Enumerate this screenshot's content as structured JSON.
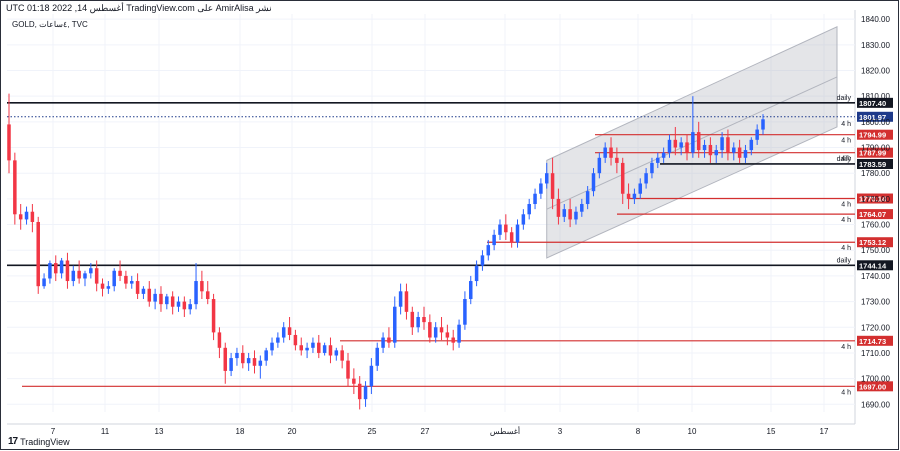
{
  "header": {
    "text": "نشر AmirAlisa على TradingView.com أغسطس 14, 2022 01:18 UTC"
  },
  "symbol": {
    "text": "GOLD, ٤ساعات, TVC"
  },
  "logo": {
    "text": "TradingView"
  },
  "colors": {
    "up": "#2962ff",
    "down": "#f23645",
    "support": "#d32f2f",
    "daily": "#131722",
    "channel": "#b2b5be",
    "price_badge": "#1e3a8a"
  },
  "chart_data": {
    "type": "candlestick",
    "timeframe": "4h",
    "ylim": [
      1687,
      1842
    ],
    "y_ticks": [
      1690,
      1700,
      1710,
      1720,
      1730,
      1740,
      1750,
      1760,
      1770,
      1780,
      1790,
      1800,
      1810,
      1820,
      1830,
      1840
    ],
    "y_tick_labels": [
      "1690.00",
      "1700.00",
      "1710.00",
      "1720.00",
      "1730.00",
      "1740.00",
      "1750.00",
      "1760.00",
      "1770.00",
      "1780.00",
      "1790.00",
      "1800.00",
      "1810.00",
      "1820.00",
      "1830.00",
      "1840.00"
    ],
    "x_labels": [
      "7",
      "11",
      "13",
      "18",
      "20",
      "25",
      "27",
      "أغسطس",
      "3",
      "8",
      "10",
      "15",
      "17"
    ],
    "current_price": 1801.97,
    "levels": [
      {
        "value": 1807.4,
        "label": "1807.40",
        "tag": "daily",
        "style": "black"
      },
      {
        "value": 1794.99,
        "label": "1794.99",
        "tag": "4 h",
        "style": "red"
      },
      {
        "value": 1787.99,
        "label": "1787.99",
        "tag": "4 h",
        "style": "red"
      },
      {
        "value": 1783.59,
        "label": "1783.59",
        "tag": "daily",
        "style": "black"
      },
      {
        "value": 1770.14,
        "label": "1770.14",
        "tag": "4 h",
        "style": "red"
      },
      {
        "value": 1764.07,
        "label": "1764.07",
        "tag": "4 h",
        "style": "red"
      },
      {
        "value": 1753.12,
        "label": "1753.12",
        "tag": "4 h",
        "style": "red"
      },
      {
        "value": 1744.14,
        "label": "1744.14",
        "tag": "daily",
        "style": "black"
      },
      {
        "value": 1714.73,
        "label": "1714.73",
        "tag": "4 h",
        "style": "red"
      },
      {
        "value": 1697.0,
        "label": "1697.00",
        "tag": "4 h",
        "style": "red"
      }
    ],
    "current_price_label": "1801.97",
    "extra_tag": "4 h",
    "candles": [
      {
        "o": 1799,
        "h": 1811,
        "c": 1785,
        "l": 1780
      },
      {
        "o": 1785,
        "h": 1788,
        "c": 1764,
        "l": 1760
      },
      {
        "o": 1764,
        "h": 1768,
        "c": 1762,
        "l": 1758
      },
      {
        "o": 1762,
        "h": 1767,
        "c": 1765,
        "l": 1760
      },
      {
        "o": 1765,
        "h": 1768,
        "c": 1761,
        "l": 1757
      },
      {
        "o": 1761,
        "h": 1763,
        "c": 1736,
        "l": 1733
      },
      {
        "o": 1736,
        "h": 1741,
        "c": 1739,
        "l": 1735
      },
      {
        "o": 1739,
        "h": 1746,
        "c": 1745,
        "l": 1737
      },
      {
        "o": 1745,
        "h": 1748,
        "c": 1741,
        "l": 1738
      },
      {
        "o": 1741,
        "h": 1747,
        "c": 1746,
        "l": 1739
      },
      {
        "o": 1746,
        "h": 1749,
        "c": 1738,
        "l": 1735
      },
      {
        "o": 1738,
        "h": 1744,
        "c": 1742,
        "l": 1736
      },
      {
        "o": 1742,
        "h": 1746,
        "c": 1739,
        "l": 1737
      },
      {
        "o": 1739,
        "h": 1742,
        "c": 1741,
        "l": 1736
      },
      {
        "o": 1741,
        "h": 1745,
        "c": 1743,
        "l": 1739
      },
      {
        "o": 1743,
        "h": 1746,
        "c": 1737,
        "l": 1734
      },
      {
        "o": 1737,
        "h": 1739,
        "c": 1735,
        "l": 1732
      },
      {
        "o": 1735,
        "h": 1738,
        "c": 1736,
        "l": 1733
      },
      {
        "o": 1736,
        "h": 1743,
        "c": 1742,
        "l": 1734
      },
      {
        "o": 1742,
        "h": 1746,
        "c": 1740,
        "l": 1738
      },
      {
        "o": 1740,
        "h": 1742,
        "c": 1737,
        "l": 1735
      },
      {
        "o": 1737,
        "h": 1740,
        "c": 1738,
        "l": 1735
      },
      {
        "o": 1738,
        "h": 1741,
        "c": 1733,
        "l": 1731
      },
      {
        "o": 1733,
        "h": 1736,
        "c": 1735,
        "l": 1731
      },
      {
        "o": 1735,
        "h": 1738,
        "c": 1730,
        "l": 1728
      },
      {
        "o": 1730,
        "h": 1735,
        "c": 1733,
        "l": 1727
      },
      {
        "o": 1733,
        "h": 1736,
        "c": 1729,
        "l": 1726
      },
      {
        "o": 1729,
        "h": 1733,
        "c": 1732,
        "l": 1727
      },
      {
        "o": 1732,
        "h": 1734,
        "c": 1728,
        "l": 1725
      },
      {
        "o": 1728,
        "h": 1732,
        "c": 1730,
        "l": 1726
      },
      {
        "o": 1730,
        "h": 1732,
        "c": 1727,
        "l": 1724
      },
      {
        "o": 1727,
        "h": 1731,
        "c": 1729,
        "l": 1725
      },
      {
        "o": 1729,
        "h": 1745,
        "c": 1738,
        "l": 1727
      },
      {
        "o": 1738,
        "h": 1742,
        "c": 1734,
        "l": 1731
      },
      {
        "o": 1734,
        "h": 1738,
        "c": 1731,
        "l": 1729
      },
      {
        "o": 1731,
        "h": 1733,
        "c": 1718,
        "l": 1715
      },
      {
        "o": 1718,
        "h": 1720,
        "c": 1712,
        "l": 1708
      },
      {
        "o": 1712,
        "h": 1714,
        "c": 1703,
        "l": 1698
      },
      {
        "o": 1703,
        "h": 1710,
        "c": 1708,
        "l": 1701
      },
      {
        "o": 1708,
        "h": 1712,
        "c": 1710,
        "l": 1705
      },
      {
        "o": 1710,
        "h": 1713,
        "c": 1706,
        "l": 1704
      },
      {
        "o": 1706,
        "h": 1710,
        "c": 1708,
        "l": 1703
      },
      {
        "o": 1708,
        "h": 1711,
        "c": 1705,
        "l": 1702
      },
      {
        "o": 1705,
        "h": 1709,
        "c": 1707,
        "l": 1700
      },
      {
        "o": 1707,
        "h": 1712,
        "c": 1711,
        "l": 1705
      },
      {
        "o": 1711,
        "h": 1716,
        "c": 1714,
        "l": 1709
      },
      {
        "o": 1714,
        "h": 1718,
        "c": 1716,
        "l": 1712
      },
      {
        "o": 1716,
        "h": 1722,
        "c": 1720,
        "l": 1714
      },
      {
        "o": 1720,
        "h": 1724,
        "c": 1717,
        "l": 1715
      },
      {
        "o": 1717,
        "h": 1719,
        "c": 1713,
        "l": 1711
      },
      {
        "o": 1713,
        "h": 1716,
        "c": 1711,
        "l": 1709
      },
      {
        "o": 1711,
        "h": 1714,
        "c": 1712,
        "l": 1708
      },
      {
        "o": 1712,
        "h": 1716,
        "c": 1714,
        "l": 1710
      },
      {
        "o": 1714,
        "h": 1717,
        "c": 1710,
        "l": 1708
      },
      {
        "o": 1710,
        "h": 1714,
        "c": 1713,
        "l": 1709
      },
      {
        "o": 1713,
        "h": 1716,
        "c": 1709,
        "l": 1706
      },
      {
        "o": 1709,
        "h": 1712,
        "c": 1711,
        "l": 1707
      },
      {
        "o": 1711,
        "h": 1713,
        "c": 1707,
        "l": 1704
      },
      {
        "o": 1707,
        "h": 1710,
        "c": 1700,
        "l": 1697
      },
      {
        "o": 1700,
        "h": 1704,
        "c": 1698,
        "l": 1694
      },
      {
        "o": 1698,
        "h": 1701,
        "c": 1692,
        "l": 1688
      },
      {
        "o": 1692,
        "h": 1699,
        "c": 1697,
        "l": 1689
      },
      {
        "o": 1697,
        "h": 1708,
        "c": 1705,
        "l": 1694
      },
      {
        "o": 1705,
        "h": 1714,
        "c": 1712,
        "l": 1703
      },
      {
        "o": 1712,
        "h": 1718,
        "c": 1716,
        "l": 1710
      },
      {
        "o": 1716,
        "h": 1720,
        "c": 1714,
        "l": 1712
      },
      {
        "o": 1714,
        "h": 1732,
        "c": 1728,
        "l": 1712
      },
      {
        "o": 1728,
        "h": 1737,
        "c": 1734,
        "l": 1725
      },
      {
        "o": 1734,
        "h": 1737,
        "c": 1726,
        "l": 1723
      },
      {
        "o": 1726,
        "h": 1728,
        "c": 1720,
        "l": 1717
      },
      {
        "o": 1720,
        "h": 1726,
        "c": 1724,
        "l": 1718
      },
      {
        "o": 1724,
        "h": 1728,
        "c": 1722,
        "l": 1719
      },
      {
        "o": 1722,
        "h": 1725,
        "c": 1716,
        "l": 1714
      },
      {
        "o": 1716,
        "h": 1722,
        "c": 1720,
        "l": 1714
      },
      {
        "o": 1720,
        "h": 1724,
        "c": 1718,
        "l": 1715
      },
      {
        "o": 1718,
        "h": 1721,
        "c": 1716,
        "l": 1713
      },
      {
        "o": 1716,
        "h": 1719,
        "c": 1714,
        "l": 1711
      },
      {
        "o": 1714,
        "h": 1723,
        "c": 1721,
        "l": 1712
      },
      {
        "o": 1721,
        "h": 1734,
        "c": 1731,
        "l": 1719
      },
      {
        "o": 1731,
        "h": 1740,
        "c": 1738,
        "l": 1729
      },
      {
        "o": 1738,
        "h": 1746,
        "c": 1744,
        "l": 1736
      },
      {
        "o": 1744,
        "h": 1750,
        "c": 1748,
        "l": 1742
      },
      {
        "o": 1748,
        "h": 1754,
        "c": 1752,
        "l": 1746
      },
      {
        "o": 1752,
        "h": 1758,
        "c": 1756,
        "l": 1750
      },
      {
        "o": 1756,
        "h": 1762,
        "c": 1760,
        "l": 1754
      },
      {
        "o": 1760,
        "h": 1764,
        "c": 1757,
        "l": 1754
      },
      {
        "o": 1757,
        "h": 1759,
        "c": 1753,
        "l": 1751
      },
      {
        "o": 1753,
        "h": 1762,
        "c": 1760,
        "l": 1751
      },
      {
        "o": 1760,
        "h": 1766,
        "c": 1764,
        "l": 1758
      },
      {
        "o": 1764,
        "h": 1770,
        "c": 1768,
        "l": 1762
      },
      {
        "o": 1768,
        "h": 1774,
        "c": 1772,
        "l": 1766
      },
      {
        "o": 1772,
        "h": 1778,
        "c": 1776,
        "l": 1770
      },
      {
        "o": 1776,
        "h": 1784,
        "c": 1780,
        "l": 1774
      },
      {
        "o": 1780,
        "h": 1786,
        "c": 1770,
        "l": 1766
      },
      {
        "o": 1770,
        "h": 1774,
        "c": 1763,
        "l": 1760
      },
      {
        "o": 1763,
        "h": 1768,
        "c": 1766,
        "l": 1761
      },
      {
        "o": 1766,
        "h": 1770,
        "c": 1762,
        "l": 1759
      },
      {
        "o": 1762,
        "h": 1767,
        "c": 1765,
        "l": 1760
      },
      {
        "o": 1765,
        "h": 1770,
        "c": 1768,
        "l": 1763
      },
      {
        "o": 1768,
        "h": 1775,
        "c": 1773,
        "l": 1766
      },
      {
        "o": 1773,
        "h": 1782,
        "c": 1780,
        "l": 1771
      },
      {
        "o": 1780,
        "h": 1788,
        "c": 1786,
        "l": 1778
      },
      {
        "o": 1786,
        "h": 1792,
        "c": 1790,
        "l": 1784
      },
      {
        "o": 1790,
        "h": 1794,
        "c": 1786,
        "l": 1783
      },
      {
        "o": 1786,
        "h": 1790,
        "c": 1784,
        "l": 1780
      },
      {
        "o": 1784,
        "h": 1786,
        "c": 1772,
        "l": 1768
      },
      {
        "o": 1772,
        "h": 1776,
        "c": 1770,
        "l": 1766
      },
      {
        "o": 1770,
        "h": 1774,
        "c": 1772,
        "l": 1768
      },
      {
        "o": 1772,
        "h": 1778,
        "c": 1776,
        "l": 1770
      },
      {
        "o": 1776,
        "h": 1782,
        "c": 1780,
        "l": 1774
      },
      {
        "o": 1780,
        "h": 1786,
        "c": 1784,
        "l": 1778
      },
      {
        "o": 1784,
        "h": 1788,
        "c": 1786,
        "l": 1782
      },
      {
        "o": 1786,
        "h": 1790,
        "c": 1788,
        "l": 1784
      },
      {
        "o": 1788,
        "h": 1795,
        "c": 1793,
        "l": 1786
      },
      {
        "o": 1793,
        "h": 1798,
        "c": 1790,
        "l": 1787
      },
      {
        "o": 1790,
        "h": 1794,
        "c": 1792,
        "l": 1787
      },
      {
        "o": 1792,
        "h": 1795,
        "c": 1788,
        "l": 1785
      },
      {
        "o": 1788,
        "h": 1810,
        "c": 1796,
        "l": 1786
      },
      {
        "o": 1796,
        "h": 1800,
        "c": 1789,
        "l": 1786
      },
      {
        "o": 1789,
        "h": 1793,
        "c": 1791,
        "l": 1786
      },
      {
        "o": 1791,
        "h": 1794,
        "c": 1787,
        "l": 1784
      },
      {
        "o": 1787,
        "h": 1791,
        "c": 1789,
        "l": 1784
      },
      {
        "o": 1789,
        "h": 1796,
        "c": 1794,
        "l": 1786
      },
      {
        "o": 1794,
        "h": 1797,
        "c": 1788,
        "l": 1785
      },
      {
        "o": 1788,
        "h": 1792,
        "c": 1790,
        "l": 1785
      },
      {
        "o": 1790,
        "h": 1793,
        "c": 1786,
        "l": 1784
      },
      {
        "o": 1786,
        "h": 1791,
        "c": 1789,
        "l": 1784
      },
      {
        "o": 1789,
        "h": 1794,
        "c": 1793,
        "l": 1787
      },
      {
        "o": 1793,
        "h": 1799,
        "c": 1797,
        "l": 1791
      },
      {
        "o": 1797,
        "h": 1803,
        "c": 1801,
        "l": 1795
      }
    ]
  }
}
